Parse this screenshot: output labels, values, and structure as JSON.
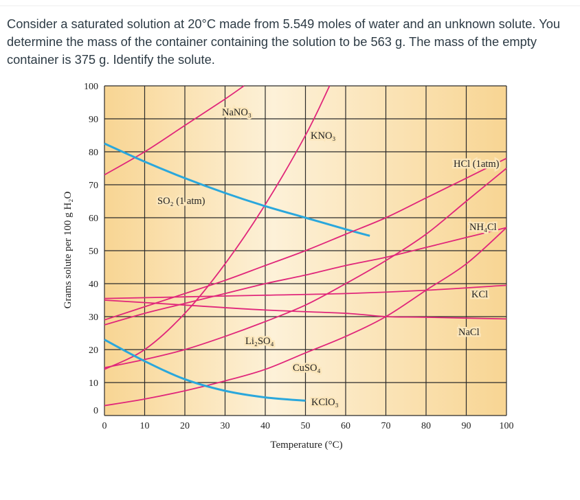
{
  "question": "Consider a saturated solution at 20°C made from 5.549 moles of water and an unknown solute. You determine the mass of the container containing the solution to be 563 g. The mass of the empty container is 375 g. Identify the solute.",
  "chart_data": {
    "type": "line",
    "title": "",
    "xlabel": "Temperature (°C)",
    "ylabel": "Grams solute per 100 g H₂O",
    "xlim": [
      0,
      100
    ],
    "ylim": [
      0,
      100
    ],
    "xticks": [
      "0",
      "10",
      "20",
      "30",
      "40",
      "50",
      "60",
      "70",
      "80",
      "90",
      "100"
    ],
    "yticks": [
      "0",
      "10",
      "20",
      "30",
      "40",
      "50",
      "60",
      "70",
      "80",
      "90",
      "100"
    ],
    "grid": true,
    "colors": {
      "salt": "#e0267a",
      "gas": "#2aa7dc",
      "background_edge": "#f8d593",
      "background_center": "#fdf1d8"
    },
    "series": [
      {
        "name": "NaNO₃",
        "kind": "salt",
        "x": [
          0,
          10,
          20,
          30,
          34.7
        ],
        "y": [
          73,
          80,
          88,
          96,
          100
        ]
      },
      {
        "name": "KNO₃",
        "kind": "salt",
        "x": [
          0,
          10,
          20,
          30,
          40,
          50,
          56
        ],
        "y": [
          14,
          20,
          31,
          46,
          64,
          85,
          100
        ]
      },
      {
        "name": "HCl (1atm)",
        "kind": "gas",
        "x": [
          0,
          10,
          20,
          30,
          40,
          50,
          60,
          66
        ],
        "y": [
          82.5,
          77,
          72,
          67.5,
          63.5,
          60,
          56.5,
          54.5
        ]
      },
      {
        "name": "NH₄Cl",
        "kind": "salt",
        "x": [
          0,
          10,
          20,
          30,
          40,
          50,
          60,
          70,
          80,
          90,
          100
        ],
        "y": [
          29,
          33,
          37,
          41,
          45.5,
          50,
          55,
          60,
          66,
          72,
          78
        ]
      },
      {
        "name": "KCl",
        "kind": "salt",
        "x": [
          0,
          10,
          20,
          30,
          40,
          50,
          60,
          70,
          80,
          90,
          100
        ],
        "y": [
          27.5,
          31,
          34,
          37,
          40,
          42.6,
          45.5,
          48,
          51,
          54,
          57
        ]
      },
      {
        "name": "NaCl",
        "kind": "salt",
        "x": [
          0,
          20,
          40,
          60,
          80,
          100
        ],
        "y": [
          35.5,
          36,
          36.5,
          37,
          38,
          39.5
        ]
      },
      {
        "name": "Li₂SO₄",
        "kind": "salt",
        "x": [
          0,
          20,
          40,
          60,
          70,
          80,
          100
        ],
        "y": [
          35,
          33.5,
          32,
          31,
          30,
          29.8,
          29.3
        ]
      },
      {
        "name": "CuSO₄",
        "kind": "salt",
        "x": [
          0,
          10,
          20,
          30,
          40,
          50,
          60,
          70,
          80,
          90,
          100
        ],
        "y": [
          14.5,
          17,
          20,
          24,
          28.5,
          33.5,
          40,
          47,
          55,
          65,
          75
        ]
      },
      {
        "name": "KClO₃",
        "kind": "salt",
        "x": [
          0,
          10,
          20,
          30,
          40,
          50,
          60,
          70,
          80,
          90,
          100
        ],
        "y": [
          3,
          5,
          7.5,
          10.5,
          14,
          19,
          24,
          30,
          38,
          46,
          57
        ]
      },
      {
        "name": "SO₂ (1 atm)",
        "kind": "gas",
        "x": [
          0,
          10,
          20,
          30,
          40,
          50
        ],
        "y": [
          23,
          16.5,
          11,
          7.5,
          5.5,
          4.5
        ]
      }
    ]
  }
}
